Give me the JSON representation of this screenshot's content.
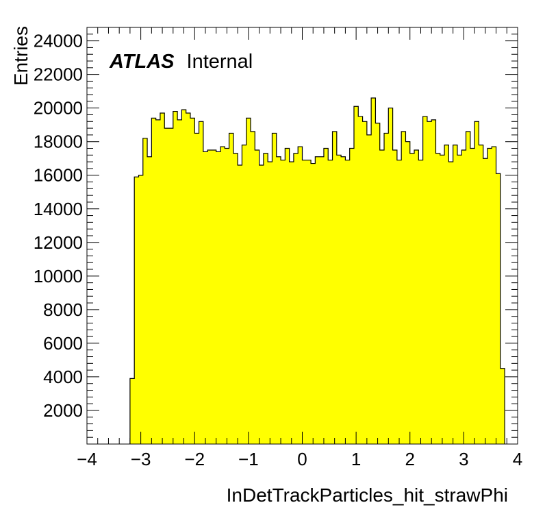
{
  "chart_data": {
    "type": "bar",
    "label_primary": "ATLAS",
    "label_secondary": "Internal",
    "xlabel": "InDetTrackParticles_hit_strawPhi",
    "ylabel": "Entries",
    "xlim": [
      -4,
      4
    ],
    "ylim": [
      0,
      24800
    ],
    "x_ticks": [
      -4,
      -3,
      -2,
      -1,
      0,
      1,
      2,
      3,
      4
    ],
    "x_tick_labels": [
      "−4",
      "−3",
      "−2",
      "−1",
      "0",
      "1",
      "2",
      "3",
      "4"
    ],
    "y_ticks": [
      2000,
      4000,
      6000,
      8000,
      10000,
      12000,
      14000,
      16000,
      18000,
      20000,
      22000,
      24000
    ],
    "y_tick_labels": [
      "2000",
      "4000",
      "6000",
      "8000",
      "10000",
      "12000",
      "14000",
      "16000",
      "18000",
      "20000",
      "22000",
      "24000"
    ],
    "bin_edges_start": -3.2,
    "bin_width": 0.08,
    "values": [
      3900,
      15900,
      16000,
      18200,
      17100,
      19400,
      19300,
      19700,
      18800,
      18800,
      19800,
      19300,
      19900,
      19700,
      19400,
      18500,
      19200,
      17400,
      17500,
      17500,
      17400,
      17700,
      17600,
      18500,
      17300,
      16600,
      17800,
      19400,
      18600,
      17500,
      16600,
      17300,
      16800,
      18500,
      17100,
      16900,
      17600,
      16800,
      17300,
      17700,
      16900,
      16900,
      16700,
      17100,
      17100,
      17600,
      16900,
      18600,
      17200,
      17100,
      16900,
      17600,
      20100,
      19500,
      19200,
      18400,
      20600,
      19100,
      17500,
      18500,
      20000,
      17500,
      16900,
      18600,
      18000,
      17300,
      17500,
      16900,
      19500,
      19200,
      19300,
      17300,
      17200,
      17800,
      16800,
      17800,
      17200,
      17500,
      18600,
      17600,
      19200,
      17800,
      17000,
      17600,
      17700,
      16100,
      4500
    ],
    "colors": {
      "fill": "#ffff00",
      "line": "#000000"
    }
  }
}
